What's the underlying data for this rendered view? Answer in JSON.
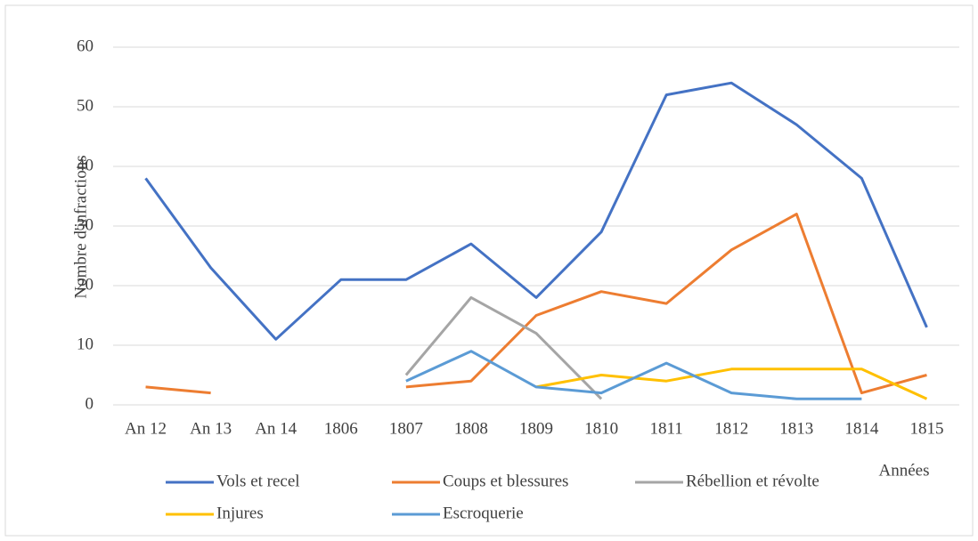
{
  "chart_data": {
    "type": "line",
    "y_label": "Nombre d'infractions",
    "x_label": "Années",
    "categories": [
      "An 12",
      "An 13",
      "An 14",
      "1806",
      "1807",
      "1808",
      "1809",
      "1810",
      "1811",
      "1812",
      "1813",
      "1814",
      "1815"
    ],
    "series": [
      {
        "name": "Vols et recel",
        "color": "#4472c4",
        "values": [
          38,
          23,
          11,
          21,
          21,
          27,
          18,
          29,
          52,
          54,
          47,
          38,
          13
        ]
      },
      {
        "name": "Coups et blessures",
        "color": "#ed7d31",
        "values": [
          3,
          2,
          null,
          null,
          3,
          4,
          15,
          19,
          17,
          26,
          32,
          2,
          5
        ]
      },
      {
        "name": "Rébellion et révolte",
        "color": "#a5a5a5",
        "values": [
          null,
          null,
          null,
          null,
          5,
          18,
          12,
          1,
          null,
          null,
          null,
          null,
          null
        ]
      },
      {
        "name": "Injures",
        "color": "#ffc000",
        "values": [
          null,
          null,
          null,
          null,
          null,
          null,
          3,
          5,
          4,
          6,
          6,
          6,
          1
        ]
      },
      {
        "name": "Escroquerie",
        "color": "#5b9bd5",
        "values": [
          null,
          null,
          null,
          null,
          4,
          9,
          3,
          2,
          7,
          2,
          1,
          1,
          null
        ]
      }
    ],
    "ylim": [
      0,
      60
    ],
    "yticks": [
      0,
      10,
      20,
      30,
      40,
      50,
      60
    ],
    "grid": true,
    "legend": "bottom"
  }
}
